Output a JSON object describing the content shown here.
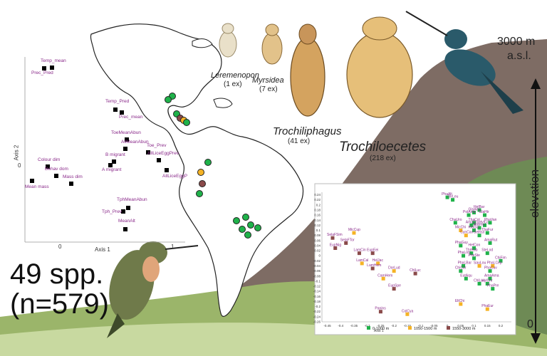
{
  "colors": {
    "sky": "#ffffff",
    "mountain": "#7b6a63",
    "grass": "#8aa85a",
    "americas": "#ffffff",
    "pca_label": "#8a2a8a",
    "low": "#1fb24a",
    "mid": "#f5b325",
    "high": "#8a4a4a"
  },
  "summary": {
    "species": "49 spp.",
    "samples": "(n=579)"
  },
  "elevation": {
    "top": "3000 m",
    "top_unit": "a.s.l.",
    "label": "elevation",
    "bottom": "0"
  },
  "lice": [
    {
      "genus": "Leremenopon",
      "count": "(1 ex)"
    },
    {
      "genus": "Myrsidea",
      "count": "(7 ex)"
    },
    {
      "genus": "Trochiliphagus",
      "count": "(41 ex)"
    },
    {
      "genus": "Trochiloecetes",
      "count": "(218 ex)"
    }
  ],
  "pca_left": {
    "axis1": "Axis 1",
    "axis2": "Axis 2",
    "tick_zero_x": "0",
    "tick_one_x": "1",
    "tick_zero_y": "0",
    "points": [
      {
        "label": "Temp_mean"
      },
      {
        "label": "Prec_Pred"
      },
      {
        "label": "Temp_Pred"
      },
      {
        "label": "Prec_mean"
      },
      {
        "label": "ToeMeanAbun"
      },
      {
        "label": "Toe_Prev"
      },
      {
        "label": "AllMeanAbun"
      },
      {
        "label": "B migrant"
      },
      {
        "label": "AllLiceEggPrev"
      },
      {
        "label": "A migrant"
      },
      {
        "label": "AllLiceEggP"
      },
      {
        "label": "Colour dim"
      },
      {
        "label": "Behav dom"
      },
      {
        "label": "Mass dim"
      },
      {
        "label": "Mean mass"
      },
      {
        "label": "TphMeanAbun"
      },
      {
        "label": "Tph_Prev"
      },
      {
        "label": "MeanAlt"
      }
    ]
  },
  "chart_data": {
    "type": "scatter",
    "xlabel": "Axis 1",
    "ylabel": "",
    "xlim": [
      -0.47,
      0.24
    ],
    "ylim": [
      -0.26,
      0.25
    ],
    "x_ticks": [
      "-0.45",
      "-0.4",
      "-0.35",
      "-0.3",
      "-0.25",
      "-0.2",
      "-0.15",
      "-0.1",
      "-0.05",
      "0",
      "0.05",
      "0.1",
      "0.15",
      "0.2"
    ],
    "y_ticks": [
      "0.24",
      "0.22",
      "0.2",
      "0.18",
      "0.16",
      "0.14",
      "0.12",
      "0.1",
      "0.08",
      "0.06",
      "0.04",
      "0.02",
      "0",
      "-0.02",
      "-0.04",
      "-0.06",
      "-0.08",
      "-0.1",
      "-0.12",
      "-0.14",
      "-0.16",
      "-0.18",
      "-0.2",
      "-0.22",
      "-0.24",
      "-0.26"
    ],
    "legend": [
      "0-1000 m",
      "1050-1500 m",
      "1550-3000 m"
    ],
    "points": [
      {
        "label": "PhaAlt",
        "x": 0.0,
        "y": 0.23,
        "g": 0
      },
      {
        "label": "ThrLeu",
        "x": 0.02,
        "y": 0.22,
        "g": 0
      },
      {
        "label": "HelBar",
        "x": 0.12,
        "y": 0.18,
        "g": 0
      },
      {
        "label": "GlaAen",
        "x": 0.1,
        "y": 0.17,
        "g": 0
      },
      {
        "label": "PolAma",
        "x": 0.08,
        "y": 0.16,
        "g": 0
      },
      {
        "label": "GlaHir",
        "x": 0.14,
        "y": 0.16,
        "g": 0
      },
      {
        "label": "ChaUro",
        "x": 0.03,
        "y": 0.13,
        "g": 0
      },
      {
        "label": "ThaCol",
        "x": 0.1,
        "y": 0.13,
        "g": 0
      },
      {
        "label": "HylCol",
        "x": 0.14,
        "y": 0.12,
        "g": 0
      },
      {
        "label": "PhaVan",
        "x": 0.16,
        "y": 0.13,
        "g": 0
      },
      {
        "label": "AmaTza",
        "x": 0.09,
        "y": 0.12,
        "g": 0
      },
      {
        "label": "AntPro",
        "x": 0.12,
        "y": 0.11,
        "g": 0
      },
      {
        "label": "MicChi",
        "x": 0.05,
        "y": 0.1,
        "g": 1
      },
      {
        "label": "KlaGui",
        "x": 0.1,
        "y": 0.1,
        "g": 0
      },
      {
        "label": "ThaFur",
        "x": 0.15,
        "y": 0.09,
        "g": 0
      },
      {
        "label": "CynCan",
        "x": 0.07,
        "y": 0.08,
        "g": 1
      },
      {
        "label": "SelRut",
        "x": 0.12,
        "y": 0.08,
        "g": 0
      },
      {
        "label": "AmaRut",
        "x": 0.16,
        "y": 0.05,
        "g": 0
      },
      {
        "label": "PhaGuy",
        "x": 0.05,
        "y": 0.04,
        "g": 0
      },
      {
        "label": "HelCon",
        "x": 0.1,
        "y": 0.03,
        "g": 0
      },
      {
        "label": "ThrRub",
        "x": 0.09,
        "y": 0.01,
        "g": 0
      },
      {
        "label": "SteLod",
        "x": 0.15,
        "y": 0.01,
        "g": 0
      },
      {
        "label": "PhaLon",
        "x": 0.06,
        "y": 0.0,
        "g": 0
      },
      {
        "label": "PheSte",
        "x": 0.1,
        "y": -0.01,
        "g": 0
      },
      {
        "label": "ChiFim",
        "x": 0.2,
        "y": -0.02,
        "g": 0
      },
      {
        "label": "PhaLBar",
        "x": 0.06,
        "y": -0.04,
        "g": 0
      },
      {
        "label": "SauLou",
        "x": 0.12,
        "y": -0.04,
        "g": 1
      },
      {
        "label": "PhaLCep",
        "x": 0.17,
        "y": -0.04,
        "g": 1
      },
      {
        "label": "ChiCar",
        "x": 0.05,
        "y": -0.06,
        "g": 0
      },
      {
        "label": "PhaCuv",
        "x": 0.16,
        "y": -0.06,
        "g": 0
      },
      {
        "label": "EutAqu",
        "x": 0.07,
        "y": -0.09,
        "g": 0
      },
      {
        "label": "AmaAma",
        "x": 0.16,
        "y": -0.09,
        "g": 0
      },
      {
        "label": "ChlLuc",
        "x": 0.12,
        "y": -0.11,
        "g": 0
      },
      {
        "label": "HylChr",
        "x": 0.15,
        "y": -0.11,
        "g": 0
      },
      {
        "label": "PhaPre",
        "x": 0.17,
        "y": -0.13,
        "g": 0
      },
      {
        "label": "EltChi",
        "x": 0.05,
        "y": -0.19,
        "g": 1
      },
      {
        "label": "PhaEur",
        "x": 0.15,
        "y": -0.21,
        "g": 1
      },
      {
        "label": "MicCup",
        "x": -0.35,
        "y": 0.09,
        "g": 1
      },
      {
        "label": "SelaFSim",
        "x": -0.43,
        "y": 0.07,
        "g": 2
      },
      {
        "label": "SelaFTor",
        "x": -0.38,
        "y": 0.05,
        "g": 2
      },
      {
        "label": "EupNig",
        "x": -0.42,
        "y": 0.03,
        "g": 2
      },
      {
        "label": "LamCin",
        "x": -0.33,
        "y": 0.01,
        "g": 2
      },
      {
        "label": "EupEei",
        "x": -0.28,
        "y": 0.01,
        "g": 2
      },
      {
        "label": "LamCal",
        "x": -0.32,
        "y": -0.03,
        "g": 1
      },
      {
        "label": "HelJac",
        "x": -0.26,
        "y": -0.03,
        "g": 1
      },
      {
        "label": "LamHem",
        "x": -0.28,
        "y": -0.05,
        "g": 2
      },
      {
        "label": "DorLud",
        "x": -0.2,
        "y": -0.06,
        "g": 1
      },
      {
        "label": "ChlLuc",
        "x": -0.12,
        "y": -0.07,
        "g": 2
      },
      {
        "label": "CamHem",
        "x": -0.24,
        "y": -0.09,
        "g": 1
      },
      {
        "label": "EupSpe",
        "x": -0.2,
        "y": -0.13,
        "g": 2
      },
      {
        "label": "Panins",
        "x": -0.25,
        "y": -0.22,
        "g": 2
      },
      {
        "label": "ColCya",
        "x": -0.15,
        "y": -0.23,
        "g": 1
      }
    ]
  }
}
